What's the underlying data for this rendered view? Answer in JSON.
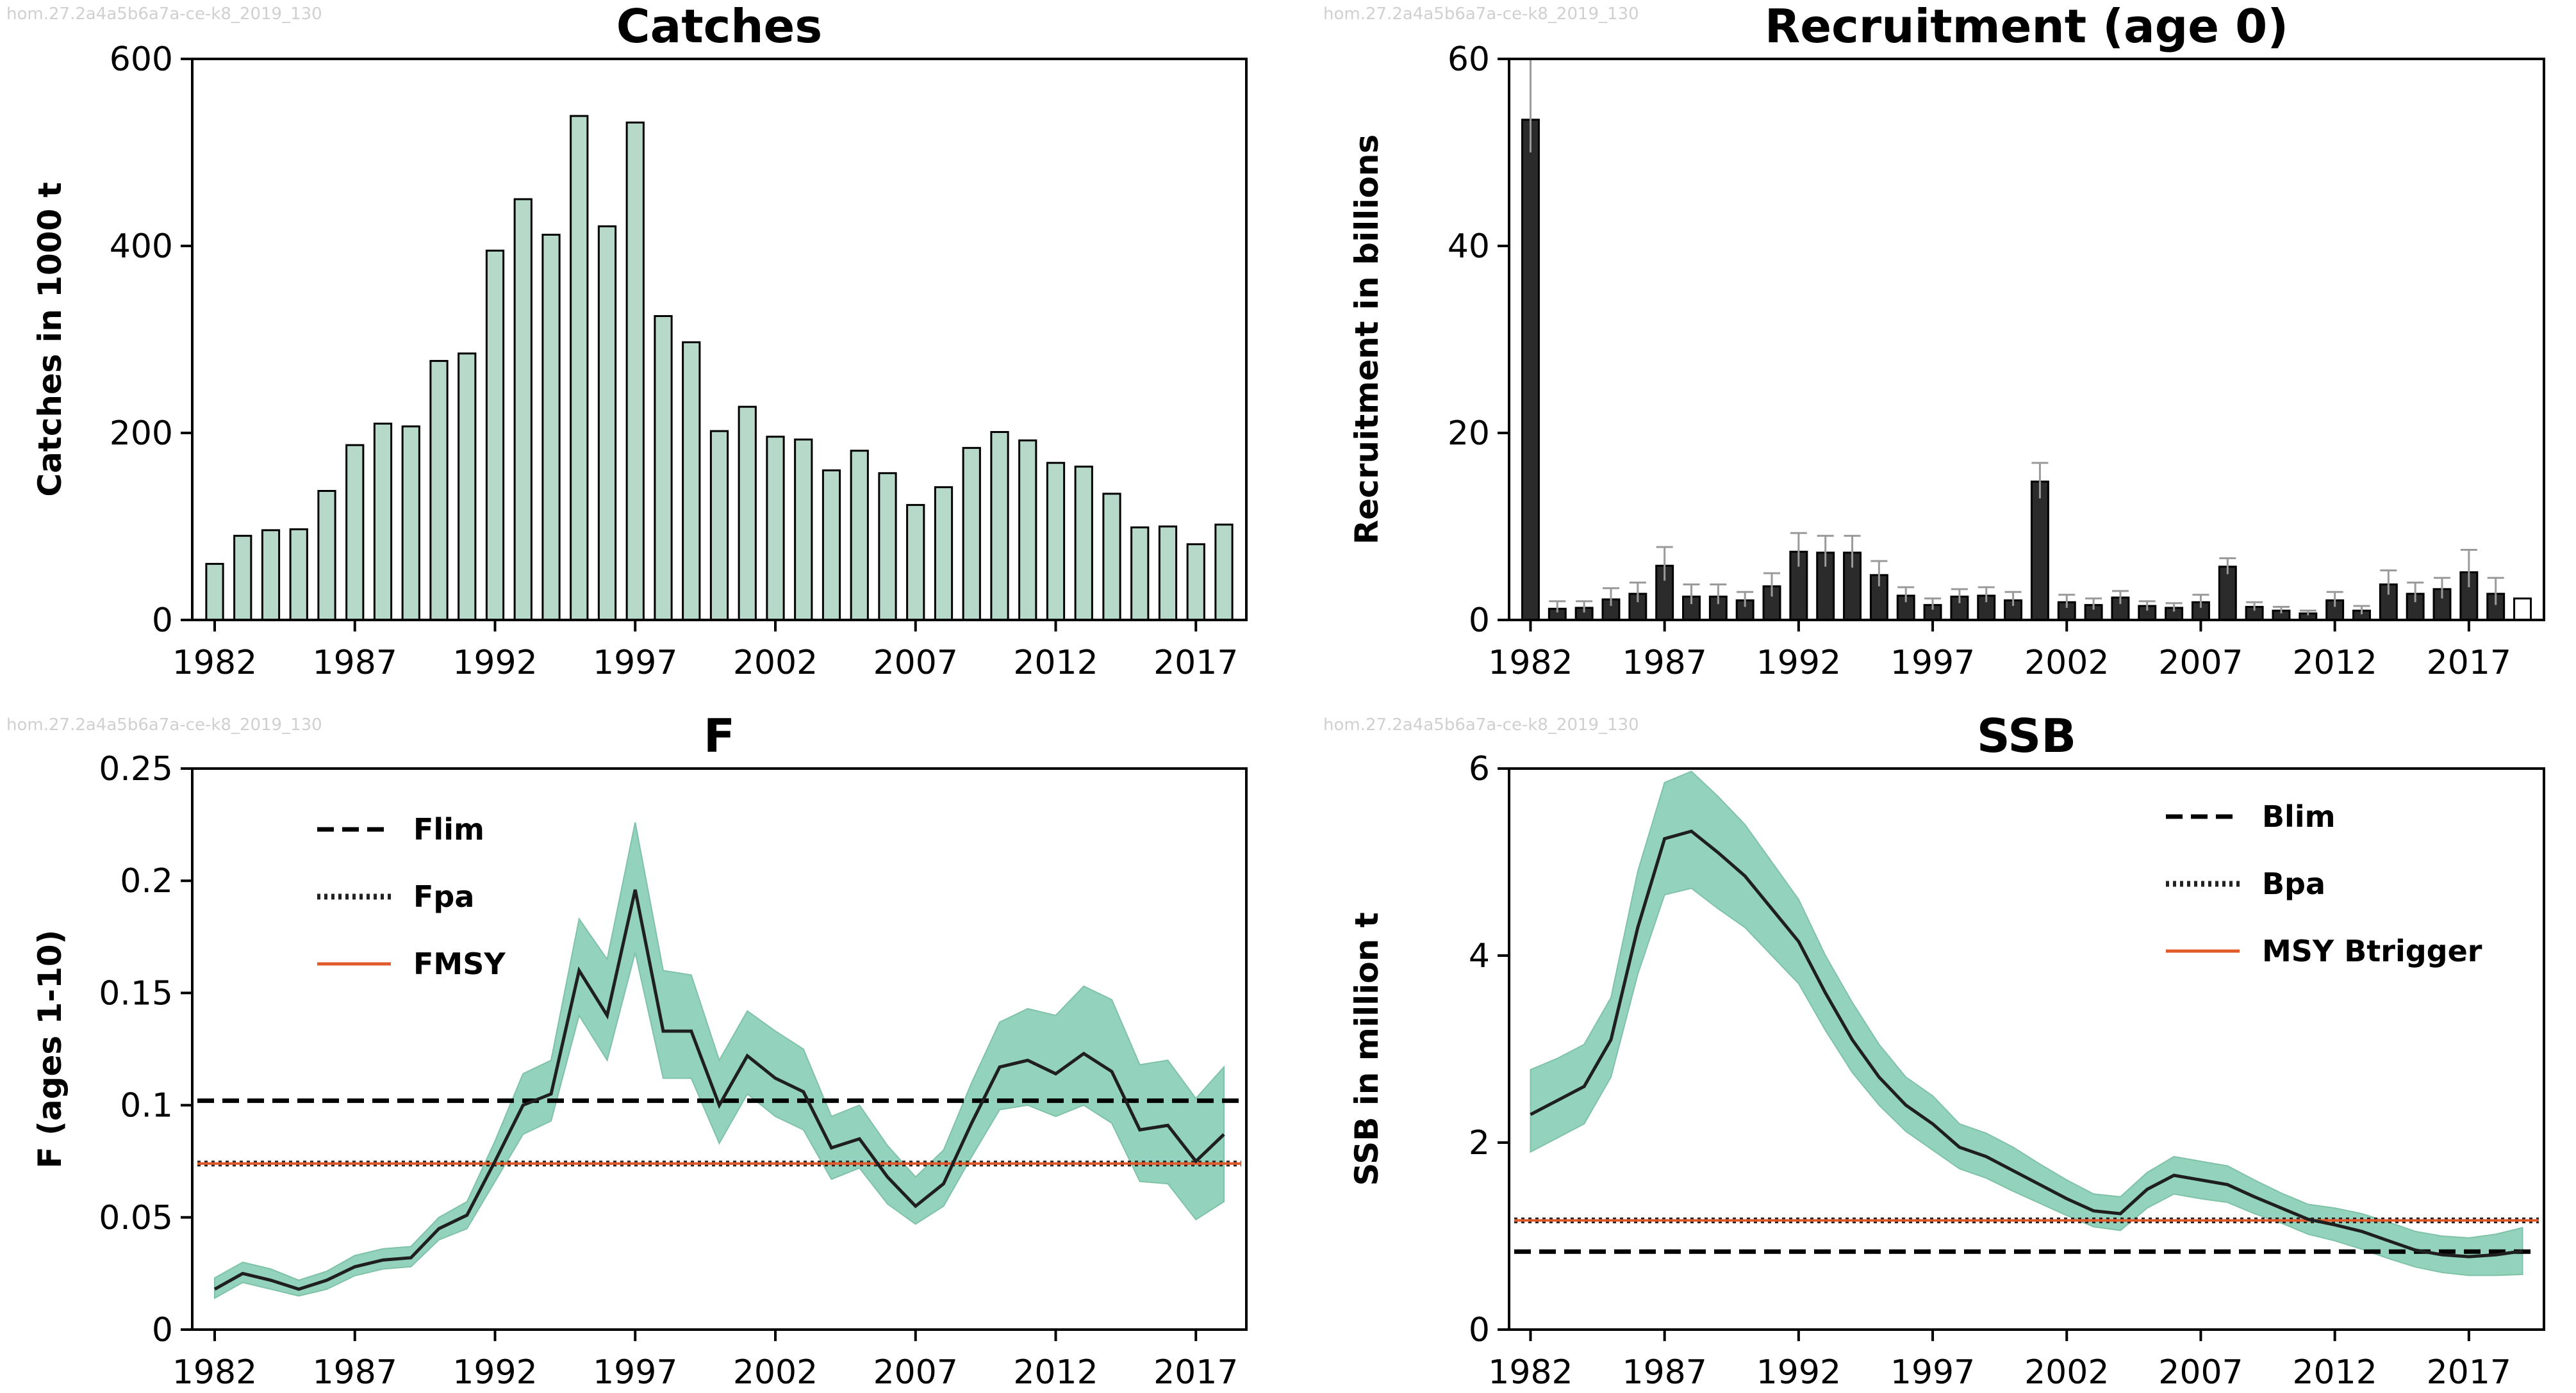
{
  "colors": {
    "catch_bar": "#b6d9c9",
    "recruit_bar": "#2b2b2b",
    "band": "#93d3bd",
    "band_edge": "#7fc2a8",
    "line": "#1f1f1f",
    "msy": "#e2592a",
    "axis": "#000000"
  },
  "panels": {
    "catches": {
      "watermark": "hom.27.2a4a5b6a7a-ce-k8_2019_130"
    },
    "recruitment": {
      "watermark": "hom.27.2a4a5b6a7a-ce-k8_2019_130"
    },
    "f": {
      "watermark": "hom.27.2a4a5b6a7a-ce-k8_2019_130"
    },
    "ssb": {
      "watermark": "hom.27.2a4a5b6a7a-ce-k8_2019_130"
    }
  },
  "chart_data": [
    {
      "id": "catches",
      "type": "bar",
      "title": "Catches",
      "xlabel": "",
      "ylabel": "Catches in 1000 t",
      "xlim": [
        1981.2,
        2018.8
      ],
      "ylim": [
        0,
        600
      ],
      "yticks": [
        0,
        200,
        400,
        600
      ],
      "yticklabels": [
        "0",
        "200",
        "400",
        "600"
      ],
      "xticks": [
        1982,
        1987,
        1992,
        1997,
        2002,
        2007,
        2012,
        2017
      ],
      "x": [
        1982,
        1983,
        1984,
        1985,
        1986,
        1987,
        1988,
        1989,
        1990,
        1991,
        1992,
        1993,
        1994,
        1995,
        1996,
        1997,
        1998,
        1999,
        2000,
        2001,
        2002,
        2003,
        2004,
        2005,
        2006,
        2007,
        2008,
        2009,
        2010,
        2011,
        2012,
        2013,
        2014,
        2015,
        2016,
        2017,
        2018
      ],
      "values": [
        60,
        90,
        96,
        97,
        138,
        187,
        210,
        207,
        277,
        285,
        395,
        450,
        412,
        539,
        421,
        532,
        325,
        297,
        202,
        228,
        196,
        193,
        160,
        181,
        157,
        123,
        142,
        184,
        201,
        192,
        168,
        164,
        135,
        99,
        100,
        81,
        102
      ]
    },
    {
      "id": "recruitment",
      "type": "bar",
      "title": "Recruitment (age 0)",
      "xlabel": "",
      "ylabel": "Recruitment in billions",
      "xlim": [
        1981.2,
        2019.8
      ],
      "ylim": [
        0,
        60
      ],
      "yticks": [
        0,
        20,
        40,
        60
      ],
      "yticklabels": [
        "0",
        "20",
        "40",
        "60"
      ],
      "xticks": [
        1982,
        1987,
        1992,
        1997,
        2002,
        2007,
        2012,
        2017
      ],
      "x": [
        1982,
        1983,
        1984,
        1985,
        1986,
        1987,
        1988,
        1989,
        1990,
        1991,
        1992,
        1993,
        1994,
        1995,
        1996,
        1997,
        1998,
        1999,
        2000,
        2001,
        2002,
        2003,
        2004,
        2005,
        2006,
        2007,
        2008,
        2009,
        2010,
        2011,
        2012,
        2013,
        2014,
        2015,
        2016,
        2017,
        2018,
        2019
      ],
      "values": [
        53.5,
        1.2,
        1.3,
        2.2,
        2.8,
        5.8,
        2.5,
        2.5,
        2.1,
        3.6,
        7.3,
        7.2,
        7.2,
        4.8,
        2.6,
        1.6,
        2.5,
        2.6,
        2.1,
        14.8,
        1.9,
        1.6,
        2.4,
        1.5,
        1.3,
        1.9,
        5.7,
        1.4,
        1.0,
        0.7,
        2.1,
        1.0,
        3.8,
        2.8,
        3.3,
        5.1,
        2.8,
        2.3
      ],
      "upper": [
        60,
        2.0,
        2.0,
        3.4,
        4.0,
        7.8,
        3.8,
        3.8,
        3.0,
        5.0,
        9.3,
        9.0,
        9.0,
        6.3,
        3.5,
        2.3,
        3.3,
        3.5,
        3.0,
        16.8,
        2.7,
        2.3,
        3.1,
        2.0,
        1.8,
        2.7,
        6.6,
        1.9,
        1.4,
        1.0,
        3.0,
        1.5,
        5.3,
        4.0,
        4.5,
        7.5,
        4.5,
        2.3
      ],
      "lower": [
        50,
        0.8,
        0.8,
        1.5,
        1.9,
        4.2,
        1.7,
        1.7,
        1.4,
        2.5,
        5.7,
        5.7,
        5.6,
        3.6,
        1.9,
        1.1,
        1.8,
        1.9,
        1.5,
        13.0,
        1.3,
        1.1,
        1.7,
        1.0,
        0.9,
        1.3,
        4.9,
        1.0,
        0.7,
        0.5,
        1.4,
        0.6,
        2.7,
        1.9,
        2.3,
        3.5,
        1.6,
        2.3
      ],
      "open_bar_years": [
        2019
      ]
    },
    {
      "id": "f",
      "type": "line",
      "title": "F",
      "xlabel": "",
      "ylabel": "F (ages 1-10)",
      "xlim": [
        1981.2,
        2018.8
      ],
      "ylim": [
        0,
        0.25
      ],
      "yticks": [
        0,
        0.05,
        0.1,
        0.15,
        0.2,
        0.25
      ],
      "yticklabels": [
        "0",
        "0.05",
        "0.1",
        "0.15",
        "0.2",
        "0.25"
      ],
      "xticks": [
        1982,
        1987,
        1992,
        1997,
        2002,
        2007,
        2012,
        2017
      ],
      "x": [
        1982,
        1983,
        1984,
        1985,
        1986,
        1987,
        1988,
        1989,
        1990,
        1991,
        1992,
        1993,
        1994,
        1995,
        1996,
        1997,
        1998,
        1999,
        2000,
        2001,
        2002,
        2003,
        2004,
        2005,
        2006,
        2007,
        2008,
        2009,
        2010,
        2011,
        2012,
        2013,
        2014,
        2015,
        2016,
        2017,
        2018
      ],
      "values": [
        0.018,
        0.025,
        0.022,
        0.018,
        0.022,
        0.028,
        0.031,
        0.032,
        0.045,
        0.051,
        0.075,
        0.1,
        0.105,
        0.16,
        0.14,
        0.196,
        0.133,
        0.133,
        0.1,
        0.122,
        0.112,
        0.106,
        0.081,
        0.085,
        0.068,
        0.055,
        0.065,
        0.092,
        0.117,
        0.12,
        0.114,
        0.123,
        0.115,
        0.089,
        0.091,
        0.075,
        0.087
      ],
      "upper": [
        0.023,
        0.03,
        0.027,
        0.022,
        0.026,
        0.033,
        0.036,
        0.037,
        0.05,
        0.057,
        0.084,
        0.114,
        0.12,
        0.183,
        0.165,
        0.226,
        0.16,
        0.158,
        0.12,
        0.142,
        0.133,
        0.125,
        0.095,
        0.1,
        0.082,
        0.068,
        0.08,
        0.11,
        0.137,
        0.143,
        0.14,
        0.153,
        0.147,
        0.118,
        0.12,
        0.103,
        0.117
      ],
      "lower": [
        0.014,
        0.021,
        0.018,
        0.015,
        0.018,
        0.024,
        0.027,
        0.028,
        0.04,
        0.045,
        0.066,
        0.087,
        0.093,
        0.14,
        0.12,
        0.168,
        0.112,
        0.112,
        0.083,
        0.105,
        0.095,
        0.089,
        0.067,
        0.072,
        0.056,
        0.047,
        0.055,
        0.077,
        0.098,
        0.1,
        0.095,
        0.1,
        0.092,
        0.066,
        0.065,
        0.049,
        0.057
      ],
      "reference_lines": [
        {
          "name": "Flim",
          "value": 0.102,
          "style": "dashed"
        },
        {
          "name": "Fpa",
          "value": 0.074,
          "style": "dotted"
        },
        {
          "name": "FMSY",
          "value": 0.074,
          "style": "solid-orange"
        }
      ],
      "legend_position": "top-left"
    },
    {
      "id": "ssb",
      "type": "line",
      "title": "SSB",
      "xlabel": "",
      "ylabel": "SSB in million t",
      "xlim": [
        1981.2,
        2019.8
      ],
      "ylim": [
        0,
        6
      ],
      "yticks": [
        0,
        2,
        4,
        6
      ],
      "yticklabels": [
        "0",
        "2",
        "4",
        "6"
      ],
      "xticks": [
        1982,
        1987,
        1992,
        1997,
        2002,
        2007,
        2012,
        2017
      ],
      "x": [
        1982,
        1983,
        1984,
        1985,
        1986,
        1987,
        1988,
        1989,
        1990,
        1991,
        1992,
        1993,
        1994,
        1995,
        1996,
        1997,
        1998,
        1999,
        2000,
        2001,
        2002,
        2003,
        2004,
        2005,
        2006,
        2007,
        2008,
        2009,
        2010,
        2011,
        2012,
        2013,
        2014,
        2015,
        2016,
        2017,
        2018,
        2019
      ],
      "values": [
        2.3,
        2.45,
        2.6,
        3.1,
        4.3,
        5.25,
        5.33,
        5.1,
        4.85,
        4.5,
        4.15,
        3.6,
        3.1,
        2.7,
        2.4,
        2.2,
        1.95,
        1.85,
        1.7,
        1.55,
        1.4,
        1.27,
        1.24,
        1.5,
        1.65,
        1.6,
        1.55,
        1.42,
        1.3,
        1.18,
        1.12,
        1.05,
        0.95,
        0.85,
        0.8,
        0.78,
        0.8,
        0.84
      ],
      "upper": [
        2.78,
        2.9,
        3.05,
        3.55,
        4.9,
        5.85,
        5.97,
        5.7,
        5.4,
        5.0,
        4.6,
        4.0,
        3.5,
        3.05,
        2.7,
        2.5,
        2.2,
        2.1,
        1.95,
        1.77,
        1.6,
        1.45,
        1.42,
        1.68,
        1.85,
        1.8,
        1.75,
        1.6,
        1.46,
        1.34,
        1.3,
        1.24,
        1.15,
        1.05,
        1.0,
        0.98,
        1.02,
        1.09
      ],
      "lower": [
        1.9,
        2.05,
        2.2,
        2.7,
        3.8,
        4.65,
        4.72,
        4.5,
        4.3,
        4.0,
        3.7,
        3.2,
        2.75,
        2.4,
        2.12,
        1.92,
        1.72,
        1.62,
        1.48,
        1.35,
        1.22,
        1.1,
        1.06,
        1.3,
        1.45,
        1.4,
        1.36,
        1.24,
        1.14,
        1.02,
        0.95,
        0.86,
        0.76,
        0.67,
        0.61,
        0.58,
        0.58,
        0.59
      ],
      "reference_lines": [
        {
          "name": "Blim",
          "value": 0.834,
          "style": "dashed"
        },
        {
          "name": "Bpa",
          "value": 1.168,
          "style": "dotted"
        },
        {
          "name": "MSY Btrigger",
          "value": 1.168,
          "style": "solid-orange"
        }
      ],
      "legend_position": "top-right"
    }
  ]
}
